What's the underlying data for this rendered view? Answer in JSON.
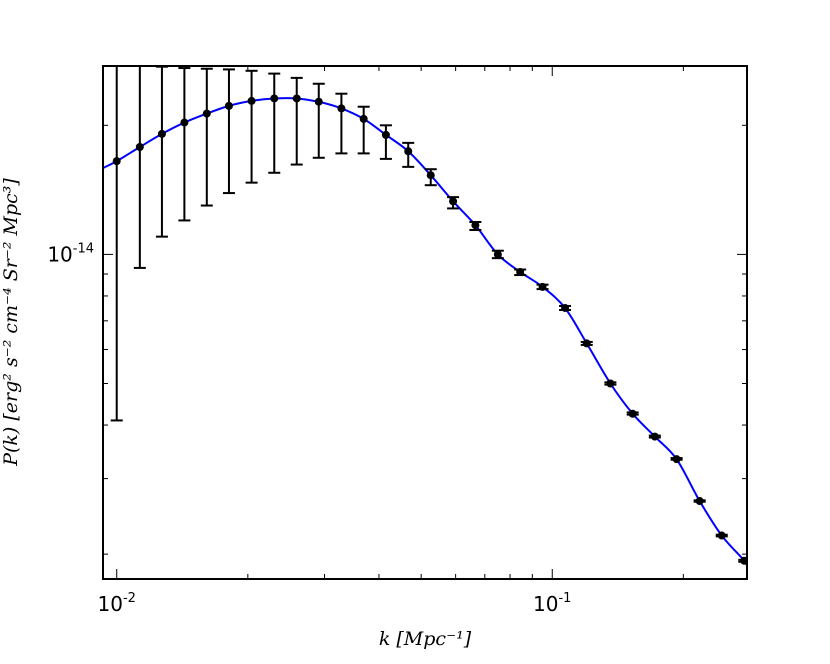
{
  "chart_data": {
    "type": "scatter",
    "xscale": "log",
    "yscale": "log",
    "xlim": [
      0.0093,
      0.28
    ],
    "ylim": [
      1.75e-15,
      2.75e-14
    ],
    "x_ticks": [
      {
        "value": 0.01,
        "base": "10",
        "exp": "-2"
      },
      {
        "value": 0.1,
        "base": "10",
        "exp": "-1"
      }
    ],
    "y_ticks": [
      {
        "value": 1e-14,
        "base": "10",
        "exp": "-14"
      }
    ],
    "xlabel": "k [Mpc⁻¹]",
    "ylabel": "P(k) [erg² s⁻² cm⁻⁴ Sr⁻² Mpc³]",
    "grid": false,
    "series": [
      {
        "kind": "points_with_errorbars",
        "color": "#000000",
        "x": [
          0.01,
          0.0113,
          0.0127,
          0.0143,
          0.0161,
          0.0181,
          0.0204,
          0.023,
          0.0259,
          0.0291,
          0.0328,
          0.0369,
          0.0415,
          0.0467,
          0.0526,
          0.0592,
          0.0666,
          0.075,
          0.0844,
          0.095,
          0.107,
          0.12,
          0.136,
          0.153,
          0.172,
          0.193,
          0.218,
          0.245,
          0.276
        ],
        "y": [
          1.65e-14,
          1.78e-14,
          1.91e-14,
          2.03e-14,
          2.13e-14,
          2.22e-14,
          2.28e-14,
          2.31e-14,
          2.31e-14,
          2.27e-14,
          2.19e-14,
          2.07e-14,
          1.9e-14,
          1.74e-14,
          1.53e-14,
          1.33e-14,
          1.17e-14,
          1e-14,
          9.1e-15,
          8.4e-15,
          7.5e-15,
          6.2e-15,
          5e-15,
          4.25e-15,
          3.76e-15,
          3.33e-15,
          2.66e-15,
          2.21e-15,
          1.93e-15
        ],
        "yerr_low": [
          4.1e-15,
          9.3e-15,
          1.1e-14,
          1.2e-14,
          1.3e-14,
          1.39e-14,
          1.47e-14,
          1.55e-14,
          1.62e-14,
          1.68e-14,
          1.72e-14,
          1.72e-14,
          1.67e-14,
          1.6e-14,
          1.45e-14,
          1.28e-14,
          1.14e-14,
          9.8e-15,
          8.95e-15,
          8.3e-15,
          7.42e-15,
          6.15e-15,
          4.97e-15,
          4.23e-15,
          3.74e-15,
          3.32e-15,
          2.65e-15,
          2.2e-15,
          1.92e-15
        ],
        "yerr_high": [
          3.2e-14,
          2.76e-14,
          2.74e-14,
          2.72e-14,
          2.71e-14,
          2.7e-14,
          2.68e-14,
          2.64e-14,
          2.58e-14,
          2.5e-14,
          2.37e-14,
          2.21e-14,
          2e-14,
          1.82e-14,
          1.58e-14,
          1.36e-14,
          1.19e-14,
          1.02e-14,
          9.22e-15,
          8.5e-15,
          7.58e-15,
          6.25e-15,
          5.03e-15,
          4.28e-15,
          3.78e-15,
          3.35e-15,
          2.67e-15,
          2.22e-15,
          1.94e-15
        ]
      },
      {
        "kind": "line",
        "color": "#0000ff",
        "x": [
          0.0093,
          0.01,
          0.0113,
          0.0127,
          0.0143,
          0.0161,
          0.0181,
          0.0204,
          0.023,
          0.0259,
          0.0291,
          0.0328,
          0.0369,
          0.0415,
          0.0467,
          0.0526,
          0.0592,
          0.0666,
          0.075,
          0.0844,
          0.095,
          0.107,
          0.12,
          0.136,
          0.153,
          0.172,
          0.193,
          0.218,
          0.245,
          0.276,
          0.28
        ],
        "y": [
          1.59e-14,
          1.65e-14,
          1.78e-14,
          1.91e-14,
          2.03e-14,
          2.13e-14,
          2.22e-14,
          2.28e-14,
          2.31e-14,
          2.31e-14,
          2.27e-14,
          2.19e-14,
          2.07e-14,
          1.9e-14,
          1.74e-14,
          1.53e-14,
          1.33e-14,
          1.17e-14,
          1e-14,
          9.1e-15,
          8.4e-15,
          7.5e-15,
          6.2e-15,
          5e-15,
          4.25e-15,
          3.76e-15,
          3.33e-15,
          2.66e-15,
          2.21e-15,
          1.93e-15,
          1.86e-15
        ]
      }
    ]
  }
}
